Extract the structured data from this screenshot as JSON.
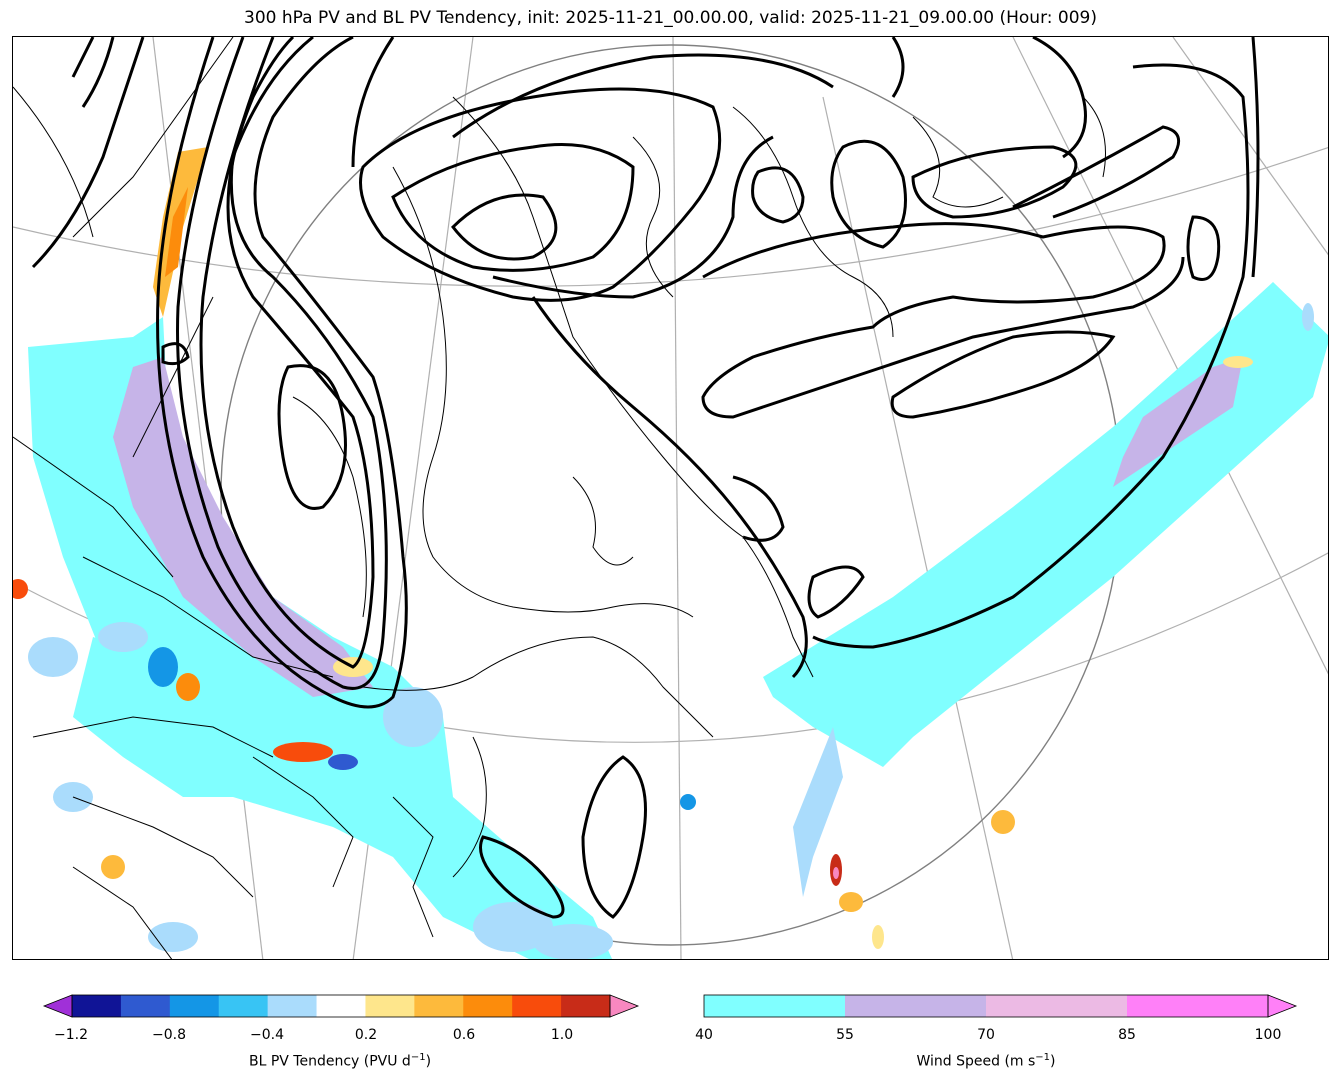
{
  "title": "300 hPa PV and BL PV Tendency, init: 2025-11-21_00.00.00, valid: 2025-11-21_09.00.00 (Hour: 009)",
  "colorbars": {
    "pv_tendency": {
      "label": "BL PV Tendency (PVU d",
      "label_sup": "−1",
      "label_end": ")",
      "tick_labels": [
        "−1.2",
        "−0.8",
        "−0.4",
        "0.2",
        "0.6",
        "1.0"
      ],
      "colors": [
        "#101496",
        "#2f5ad0",
        "#1496e6",
        "#38c4f4",
        "#aadcfc",
        "#ffffff",
        "#fee68c",
        "#fdba3c",
        "#fc8c0c",
        "#f84c0c",
        "#c82c18"
      ],
      "extend_low_color": "#a030d8",
      "extend_high_color": "#f888c0"
    },
    "wind_speed": {
      "label": "Wind Speed (m s",
      "label_sup": "−1",
      "label_end": ")",
      "tick_labels": [
        "40",
        "55",
        "70",
        "85",
        "100"
      ],
      "colors": [
        "#80ffff",
        "#c6b4e8",
        "#ecbae4",
        "#ff80f8"
      ],
      "extend_high_color": "#ff80f8"
    }
  },
  "map": {
    "contour_color": "#000000",
    "jet_core_color": "#80ffff",
    "jet_max_color": "#c6b4e8"
  }
}
